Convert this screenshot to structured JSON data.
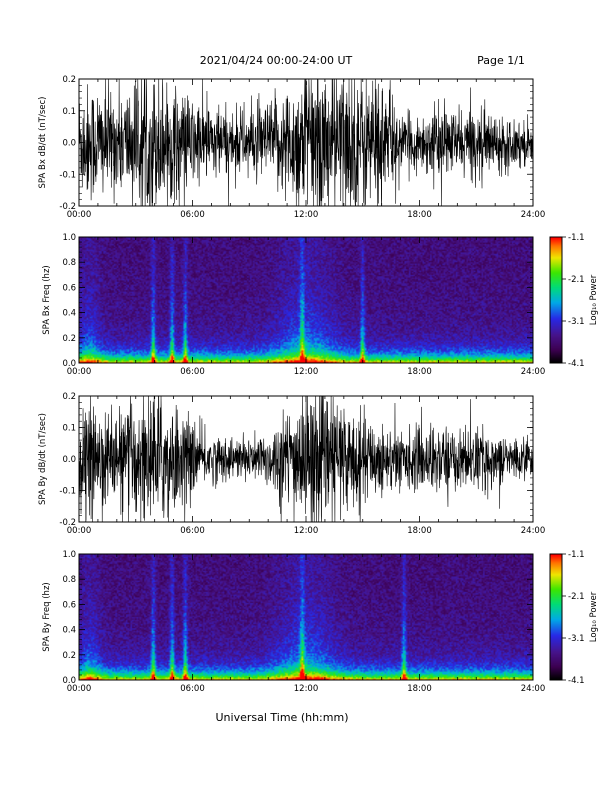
{
  "header": {
    "title": "2021/04/24  00:00-24:00 UT",
    "page": "Page 1/1"
  },
  "footer": {
    "xlabel": "Universal Time (hh:mm)"
  },
  "x_ticks": [
    "00:00",
    "06:00",
    "12:00",
    "18:00",
    "24:00"
  ],
  "colorbar": {
    "label": "Log₁₀ Power",
    "ticks": [
      "-1.1",
      "-2.1",
      "-3.1",
      "-4.1"
    ],
    "range": [
      -4.1,
      -1.1
    ],
    "scheme": "rainbow (black-purple-blue-cyan-green-yellow-red)"
  },
  "chart_data": [
    {
      "type": "line",
      "ylabel": "SPA Bx dB/dt (nT/sec)",
      "xlim": [
        0,
        24
      ],
      "ylim": [
        -0.2,
        0.2
      ],
      "y_ticks": [
        "0.2",
        "0.1",
        "0.0",
        "-0.1",
        "-0.2"
      ],
      "envelope_hours": [
        0,
        1,
        2,
        3,
        4,
        5,
        6,
        7,
        8,
        9,
        10,
        11,
        12,
        13,
        14,
        15,
        16,
        17,
        18,
        19,
        20,
        21,
        22,
        23,
        24
      ],
      "envelope_amplitude": [
        0.16,
        0.17,
        0.14,
        0.18,
        0.2,
        0.16,
        0.13,
        0.11,
        0.09,
        0.1,
        0.11,
        0.16,
        0.22,
        0.23,
        0.22,
        0.21,
        0.2,
        0.07,
        0.08,
        0.1,
        0.09,
        0.1,
        0.08,
        0.07,
        0.06
      ]
    },
    {
      "type": "heatmap",
      "ylabel": "SPA Bx Freq (hz)",
      "xlim": [
        0,
        24
      ],
      "ylim": [
        0,
        1.0
      ],
      "y_ticks": [
        "1.0",
        "0.8",
        "0.6",
        "0.4",
        "0.2",
        "0.0"
      ],
      "hot_bands_hours": [
        3.9,
        4.9,
        5.6,
        11.8,
        15.0
      ]
    },
    {
      "type": "line",
      "ylabel": "SPA By dB/dt (nT/sec)",
      "xlim": [
        0,
        24
      ],
      "ylim": [
        -0.2,
        0.2
      ],
      "y_ticks": [
        "0.2",
        "0.1",
        "0.0",
        "-0.1",
        "-0.2"
      ],
      "envelope_hours": [
        0,
        1,
        2,
        3,
        4,
        5,
        6,
        7,
        8,
        9,
        10,
        11,
        12,
        13,
        14,
        15,
        16,
        17,
        18,
        19,
        20,
        21,
        22,
        23,
        24
      ],
      "envelope_amplitude": [
        0.14,
        0.15,
        0.13,
        0.17,
        0.2,
        0.16,
        0.1,
        0.07,
        0.06,
        0.06,
        0.08,
        0.14,
        0.2,
        0.2,
        0.16,
        0.12,
        0.1,
        0.08,
        0.09,
        0.1,
        0.08,
        0.09,
        0.07,
        0.06,
        0.05
      ]
    },
    {
      "type": "heatmap",
      "ylabel": "SPA By Freq (hz)",
      "xlim": [
        0,
        24
      ],
      "ylim": [
        0,
        1.0
      ],
      "y_ticks": [
        "1.0",
        "0.8",
        "0.6",
        "0.4",
        "0.2",
        "0.0"
      ],
      "hot_bands_hours": [
        3.9,
        4.9,
        5.6,
        11.8,
        17.2
      ]
    }
  ]
}
